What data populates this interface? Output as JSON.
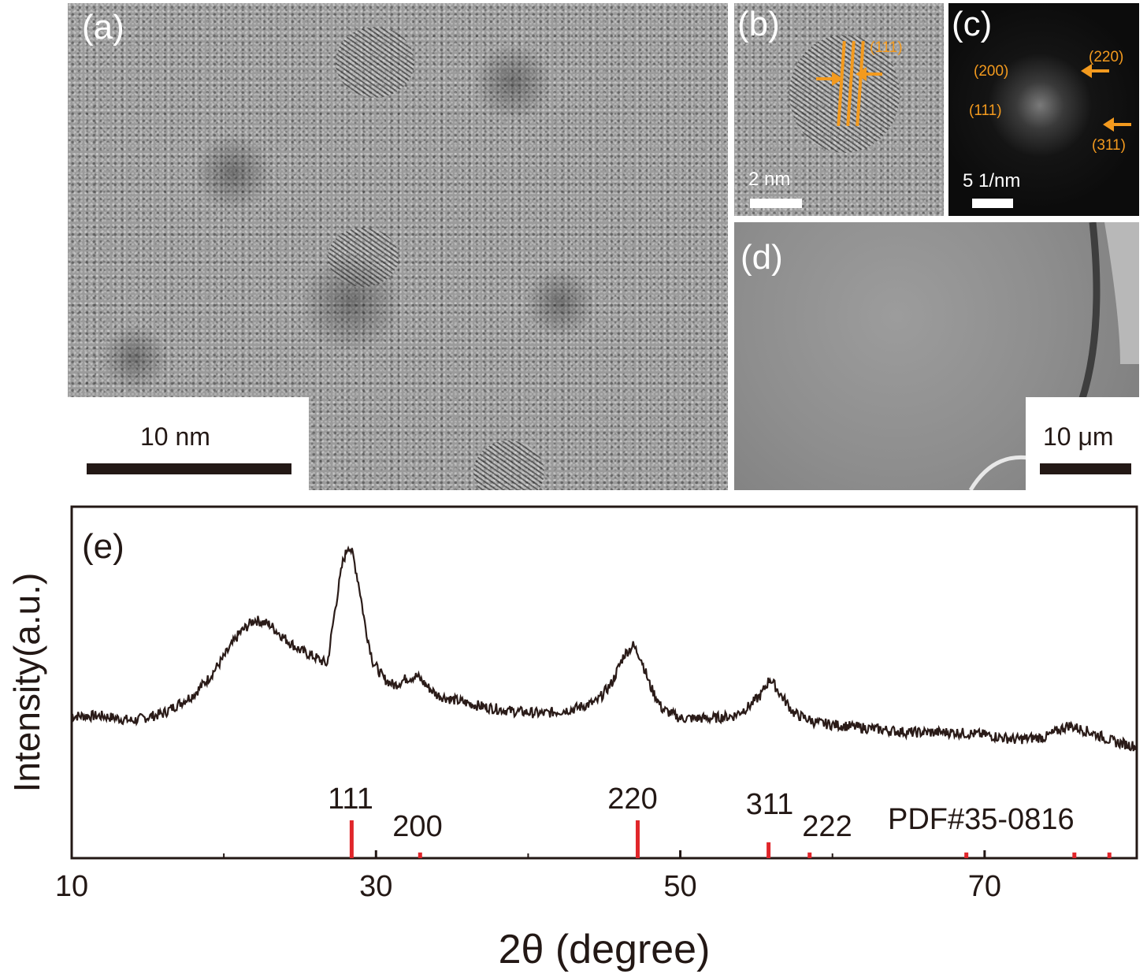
{
  "panels": {
    "a": {
      "label": "(a)",
      "scale": "10 nm"
    },
    "b": {
      "label": "(b)",
      "scale": "2 nm",
      "annotation": "(111)"
    },
    "c": {
      "label": "(c)",
      "scale": "5 1/nm",
      "spots": [
        "(200)",
        "(220)",
        "(111)",
        "(311)"
      ]
    },
    "d": {
      "label": "(d)",
      "scale": "10 μm"
    }
  },
  "chart_data": {
    "type": "line",
    "panel_label": "(e)",
    "xlabel": "2θ (degree)",
    "ylabel": "Intensity(a.u.)",
    "xlim": [
      10,
      80
    ],
    "xticks": [
      10,
      30,
      50,
      70
    ],
    "yticks_shown": false,
    "grid": false,
    "series": [
      {
        "x": [
          10,
          12,
          14,
          16,
          18,
          19,
          20,
          21,
          22,
          23,
          24,
          25,
          26,
          26.8,
          27.3,
          27.8,
          28.2,
          28.5,
          28.9,
          29.3,
          29.8,
          30.5,
          31.2,
          32.0,
          32.7,
          33.3,
          34.0,
          35,
          37,
          39,
          41,
          43,
          44.5,
          45.5,
          46.3,
          46.9,
          47.4,
          48.0,
          48.8,
          50,
          52,
          53.5,
          54.5,
          55.3,
          55.9,
          56.6,
          57.5,
          59,
          62,
          65,
          68,
          70,
          72,
          74,
          75.5,
          77,
          78.5,
          80
        ],
        "y": [
          0.27,
          0.27,
          0.25,
          0.28,
          0.36,
          0.43,
          0.52,
          0.62,
          0.68,
          0.66,
          0.6,
          0.55,
          0.52,
          0.49,
          0.72,
          0.92,
          1.0,
          0.95,
          0.82,
          0.65,
          0.5,
          0.43,
          0.4,
          0.43,
          0.44,
          0.4,
          0.36,
          0.34,
          0.31,
          0.29,
          0.28,
          0.3,
          0.33,
          0.41,
          0.53,
          0.57,
          0.52,
          0.4,
          0.3,
          0.26,
          0.26,
          0.27,
          0.31,
          0.36,
          0.43,
          0.36,
          0.28,
          0.24,
          0.22,
          0.2,
          0.2,
          0.19,
          0.17,
          0.18,
          0.23,
          0.2,
          0.16,
          0.14
        ]
      }
    ],
    "reference": {
      "name": "PDF#35-0816",
      "x": [
        28.4,
        32.9,
        47.2,
        55.8,
        58.5,
        68.8,
        75.9,
        78.2
      ],
      "intensity": [
        1.0,
        0.15,
        1.0,
        0.42,
        0.15,
        0.15,
        0.15,
        0.15
      ],
      "labels": [
        "111",
        "200",
        "220",
        "311",
        "222"
      ]
    }
  }
}
